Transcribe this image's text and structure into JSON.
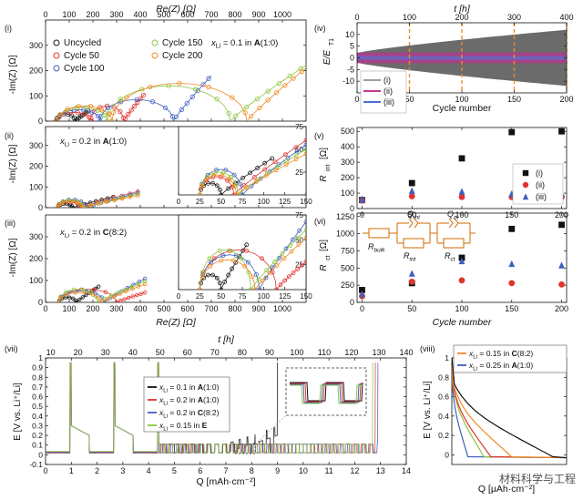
{
  "figure_axis_labels": {
    "top_re": "Re(Z) [Ω]",
    "bottom_re": "Re(Z) [Ω]",
    "im": "-Im(Z) [Ω]",
    "top_t": "t [h]",
    "cycle_number": "Cycle number",
    "cycle_number_italic": "Cycle number",
    "e_ratio": "E/E",
    "e_ratio_sub": "T1",
    "r_int": "R",
    "r_int_sub": "int",
    "r_int_unit": " [Ω]",
    "r_ct": "R",
    "r_ct_sub": "ct",
    "r_ct_unit": " [Ω]",
    "e_volt": "E [V vs. Li⁺/Li]",
    "q_cap": "Q [mAh·cm⁻²]",
    "q_cap_short": "Q [μAh·cm⁻²]",
    "t_vii": "t [h]"
  },
  "panel_labels": [
    "(i)",
    "(ii)",
    "(iii)",
    "(iv)",
    "(v)",
    "(vi)",
    "(vii)",
    "(viii)"
  ],
  "watermark": "材料科学与工程",
  "panel_i": {
    "annotation": "x",
    "annotation_sub": "Li",
    "annotation_rest": " = 0.1 in ",
    "annotation_bold": "A",
    "annotation_end": "(1:0)",
    "legend": [
      {
        "label": "Uncycled",
        "color": "#1a1a1a"
      },
      {
        "label": "Cycle 50",
        "color": "#e0342f"
      },
      {
        "label": "Cycle 100",
        "color": "#3f5fbf"
      },
      {
        "label": "Cycle 150",
        "color": "#8cc63f"
      },
      {
        "label": "Cycle 200",
        "color": "#f08a24"
      }
    ]
  },
  "panel_ii": {
    "annotation_rest": " = 0.2 in ",
    "annotation_bold": "A",
    "annotation_end": "(1:0)"
  },
  "panel_iii": {
    "annotation_rest": " = 0.2 in ",
    "annotation_bold": "C",
    "annotation_end": "(8:2)"
  },
  "panel_vi_circuit": {
    "r_bulk": "R",
    "r_bulk_sub": "bulk",
    "q_int": "Q",
    "q_int_sub": "int",
    "r_int": "R",
    "r_int_sub": "int",
    "q_ct": "Q",
    "q_ct_sub": "ct",
    "r_ct": "R",
    "r_ct_sub": "ct",
    "color": "#d9822b"
  },
  "panel_iv_legend": [
    {
      "label": "(i)",
      "color": "#9aa0a6"
    },
    {
      "label": "(ii)",
      "color": "#c8378f"
    },
    {
      "label": "(iii)",
      "color": "#4a6fd0"
    }
  ],
  "panel_v_legend": [
    {
      "label": "(i)",
      "color": "#111111",
      "shape": "square"
    },
    {
      "label": "(ii)",
      "color": "#e0342f",
      "shape": "circle"
    },
    {
      "label": "(iii)",
      "color": "#3f5fbf",
      "shape": "triangle"
    }
  ],
  "panel_vii_legend": [
    {
      "pre": "x",
      "sub": "Li",
      "rest": " = 0.1 in ",
      "bold": "A",
      "end": "(1:0)",
      "color": "#111111"
    },
    {
      "pre": "x",
      "sub": "Li",
      "rest": " = 0.2 in ",
      "bold": "A",
      "end": "(1:0)",
      "color": "#e0342f"
    },
    {
      "pre": "x",
      "sub": "Li",
      "rest": " = 0.2 in ",
      "bold": "C",
      "end": "(8:2)",
      "color": "#3f5fbf"
    },
    {
      "pre": "x",
      "sub": "Li",
      "rest": " = 0.15 in ",
      "bold": "E",
      "end": "",
      "color": "#8cc63f"
    }
  ],
  "panel_viii_legend": [
    {
      "pre": "x",
      "sub": "Li",
      "rest": " = 0.15 in ",
      "bold": "C",
      "end": "(8:2)",
      "color": "#f08a24"
    },
    {
      "pre": "x",
      "sub": "Li",
      "rest": " = 0.25 in ",
      "bold": "A",
      "end": "(1:0)",
      "color": "#3f5fbf"
    }
  ],
  "chart_data": [
    {
      "panel": "(i)",
      "type": "scatter",
      "xlabel": "Re(Z) [Ω]",
      "ylabel": "-Im(Z) [Ω]",
      "xlim": [
        0,
        1100
      ],
      "ylim": [
        0,
        400
      ],
      "xticks": [
        0,
        100,
        200,
        300,
        400,
        500,
        600,
        700,
        800,
        900,
        1000
      ],
      "yticks": [
        0,
        100,
        200,
        300
      ],
      "series": [
        {
          "name": "Uncycled",
          "color": "#1a1a1a",
          "arcs": [
            {
              "x0": 45,
              "x1": 125,
              "h": 28
            }
          ],
          "tail_end": [
            180,
            40
          ]
        },
        {
          "name": "Cycle 50",
          "color": "#e0342f",
          "arcs": [
            {
              "x0": 50,
              "x1": 190,
              "h": 35
            },
            {
              "x0": 190,
              "x1": 330,
              "h": 60
            }
          ],
          "tail_end": [
            420,
            110
          ]
        },
        {
          "name": "Cycle 100",
          "color": "#3f5fbf",
          "arcs": [
            {
              "x0": 50,
              "x1": 230,
              "h": 45
            },
            {
              "x0": 230,
              "x1": 540,
              "h": 85
            }
          ],
          "tail_end": [
            700,
            180
          ]
        },
        {
          "name": "Cycle 150",
          "color": "#8cc63f",
          "arcs": [
            {
              "x0": 50,
              "x1": 260,
              "h": 55
            },
            {
              "x0": 260,
              "x1": 780,
              "h": 140
            }
          ],
          "tail_end": [
            1100,
            222
          ]
        },
        {
          "name": "Cycle 200",
          "color": "#f08a24",
          "arcs": [
            {
              "x0": 50,
              "x1": 280,
              "h": 60
            },
            {
              "x0": 280,
              "x1": 850,
              "h": 150
            }
          ],
          "tail_end": [
            1100,
            210
          ]
        }
      ]
    },
    {
      "panel": "(ii)",
      "type": "scatter",
      "xlim": [
        0,
        1100
      ],
      "ylim": [
        0,
        400
      ],
      "yticks": [
        0,
        100,
        200,
        300
      ],
      "inset": {
        "xlim": [
          0,
          150
        ],
        "ylim": [
          0,
          75
        ],
        "xticks": [
          0,
          25,
          50,
          75,
          100,
          125,
          150
        ],
        "yticks": [
          0,
          25,
          50,
          75
        ]
      },
      "series": [
        {
          "name": "Uncycled",
          "color": "#1a1a1a",
          "arcs": [
            {
              "x0": 25,
              "x1": 50,
              "h": 13
            }
          ],
          "tail_end": [
            110,
            40
          ]
        },
        {
          "name": "Cycle 50",
          "color": "#e0342f",
          "arcs": [
            {
              "x0": 25,
              "x1": 65,
              "h": 20
            }
          ],
          "tail_end": [
            150,
            60
          ]
        },
        {
          "name": "Cycle 100",
          "color": "#3f5fbf",
          "arcs": [
            {
              "x0": 25,
              "x1": 75,
              "h": 28
            }
          ],
          "tail_end": [
            150,
            55
          ]
        },
        {
          "name": "Cycle 150",
          "color": "#8cc63f",
          "arcs": [
            {
              "x0": 25,
              "x1": 70,
              "h": 25
            }
          ],
          "tail_end": [
            150,
            50
          ]
        },
        {
          "name": "Cycle 200",
          "color": "#f08a24",
          "arcs": [
            {
              "x0": 25,
              "x1": 68,
              "h": 22
            }
          ],
          "tail_end": [
            150,
            45
          ]
        }
      ]
    },
    {
      "panel": "(iii)",
      "type": "scatter",
      "xlim": [
        0,
        1100
      ],
      "ylim": [
        0,
        400
      ],
      "yticks": [
        0,
        100,
        200,
        300
      ],
      "inset": {
        "xlim": [
          0,
          150
        ],
        "ylim": [
          0,
          75
        ],
        "xticks": [
          0,
          25,
          50,
          75,
          100,
          125,
          150
        ],
        "yticks": [
          0,
          25,
          50,
          75
        ]
      },
      "series": [
        {
          "name": "Uncycled",
          "color": "#1a1a1a",
          "arcs": [
            {
              "x0": 25,
              "x1": 50,
              "h": 15
            }
          ],
          "tail_end": [
            80,
            45
          ]
        },
        {
          "name": "Cycle 50",
          "color": "#e0342f",
          "arcs": [
            {
              "x0": 25,
              "x1": 115,
              "h": 40
            }
          ],
          "tail_end": [
            150,
            28
          ]
        },
        {
          "name": "Cycle 100",
          "color": "#3f5fbf",
          "arcs": [
            {
              "x0": 25,
              "x1": 95,
              "h": 35
            }
          ],
          "tail_end": [
            150,
            68
          ]
        },
        {
          "name": "Cycle 150",
          "color": "#8cc63f",
          "arcs": [
            {
              "x0": 25,
              "x1": 85,
              "h": 40
            }
          ],
          "tail_end": [
            150,
            60
          ]
        },
        {
          "name": "Cycle 200",
          "color": "#f08a24",
          "arcs": [
            {
              "x0": 25,
              "x1": 90,
              "h": 30
            }
          ],
          "tail_end": [
            150,
            52
          ]
        }
      ]
    },
    {
      "panel": "(iv)",
      "type": "area",
      "xlabel": "Cycle number",
      "ylabel": "E/E_T1",
      "top_xlabel": "t [h]",
      "xlim": [
        0,
        200
      ],
      "ylim": [
        -15,
        15
      ],
      "xticks": [
        0,
        50,
        100,
        150,
        200
      ],
      "top_ticks": [
        0,
        100,
        200,
        300,
        400
      ],
      "yticks": [
        -10,
        -5,
        0,
        5,
        10
      ],
      "markers_cycle": [
        50,
        100,
        150,
        200
      ],
      "envelope": {
        "start": 2.0,
        "end": 12.0
      }
    },
    {
      "panel": "(v)",
      "type": "scatter",
      "xlabel": "",
      "ylabel": "R_int [Ω]",
      "xlim": [
        -5,
        205
      ],
      "ylim": [
        0,
        525
      ],
      "xticks": [
        0,
        50,
        100,
        150,
        200
      ],
      "yticks": [
        0,
        100,
        200,
        300,
        400,
        500
      ],
      "x": [
        0,
        50,
        100,
        150,
        200
      ],
      "series": [
        {
          "name": "(i)",
          "values": [
            55,
            165,
            325,
            495,
            500
          ]
        },
        {
          "name": "(ii)",
          "values": [
            52,
            80,
            75,
            75,
            75
          ]
        },
        {
          "name": "(iii)",
          "values": [
            60,
            115,
            110,
            95,
            95
          ]
        }
      ]
    },
    {
      "panel": "(vi)",
      "type": "scatter",
      "xlabel": "Cycle number",
      "ylabel": "R_ct [Ω]",
      "xlim": [
        -5,
        205
      ],
      "ylim": [
        0,
        1300
      ],
      "xticks": [
        0,
        50,
        100,
        150,
        200
      ],
      "yticks": [
        0,
        250,
        500,
        750,
        1000,
        1250
      ],
      "x": [
        0,
        50,
        100,
        150,
        200
      ],
      "series": [
        {
          "name": "(i)",
          "values": [
            180,
            280,
            650,
            1070,
            1130
          ]
        },
        {
          "name": "(ii)",
          "values": [
            90,
            300,
            320,
            280,
            260
          ]
        },
        {
          "name": "(iii)",
          "values": [
            120,
            420,
            600,
            560,
            540
          ]
        }
      ]
    },
    {
      "panel": "(vii)",
      "type": "line",
      "xlabel": "Q [mAh·cm⁻²]",
      "ylabel": "E [V vs. Li⁺/Li]",
      "top_xlabel": "t [h]",
      "xlim": [
        0,
        14
      ],
      "ylim": [
        -0.1,
        1.0
      ],
      "xticks": [
        0,
        1,
        2,
        3,
        4,
        5,
        6,
        7,
        8,
        9,
        10,
        11,
        12,
        13,
        14
      ],
      "yticks": [
        -0.1,
        0.0,
        0.1,
        0.2,
        0.3,
        0.4,
        0.5,
        0.6,
        0.7,
        0.8,
        0.9,
        1.0
      ],
      "top_ticks": [
        10,
        20,
        30,
        40,
        50,
        60,
        70,
        80,
        90,
        100,
        110,
        120,
        130,
        140
      ],
      "series": [
        {
          "name": "x_Li = 0.1 in A(1:0)",
          "end_q": 9.0
        },
        {
          "name": "x_Li = 0.2 in A(1:0)",
          "end_q": 12.8
        },
        {
          "name": "x_Li = 0.2 in C(8:2)",
          "end_q": 12.9
        },
        {
          "name": "x_Li = 0.15 in E",
          "end_q": 12.7
        }
      ]
    },
    {
      "panel": "(viii)",
      "type": "line",
      "xlabel": "Q [μAh·cm⁻²]",
      "ylabel": "E [V vs. Li⁺/Li]",
      "xlim": [
        0,
        100
      ],
      "ylim": [
        -0.1,
        1.0
      ],
      "yticks": [
        0.0,
        0.2,
        0.4,
        0.6,
        0.8,
        1.0
      ]
    }
  ]
}
